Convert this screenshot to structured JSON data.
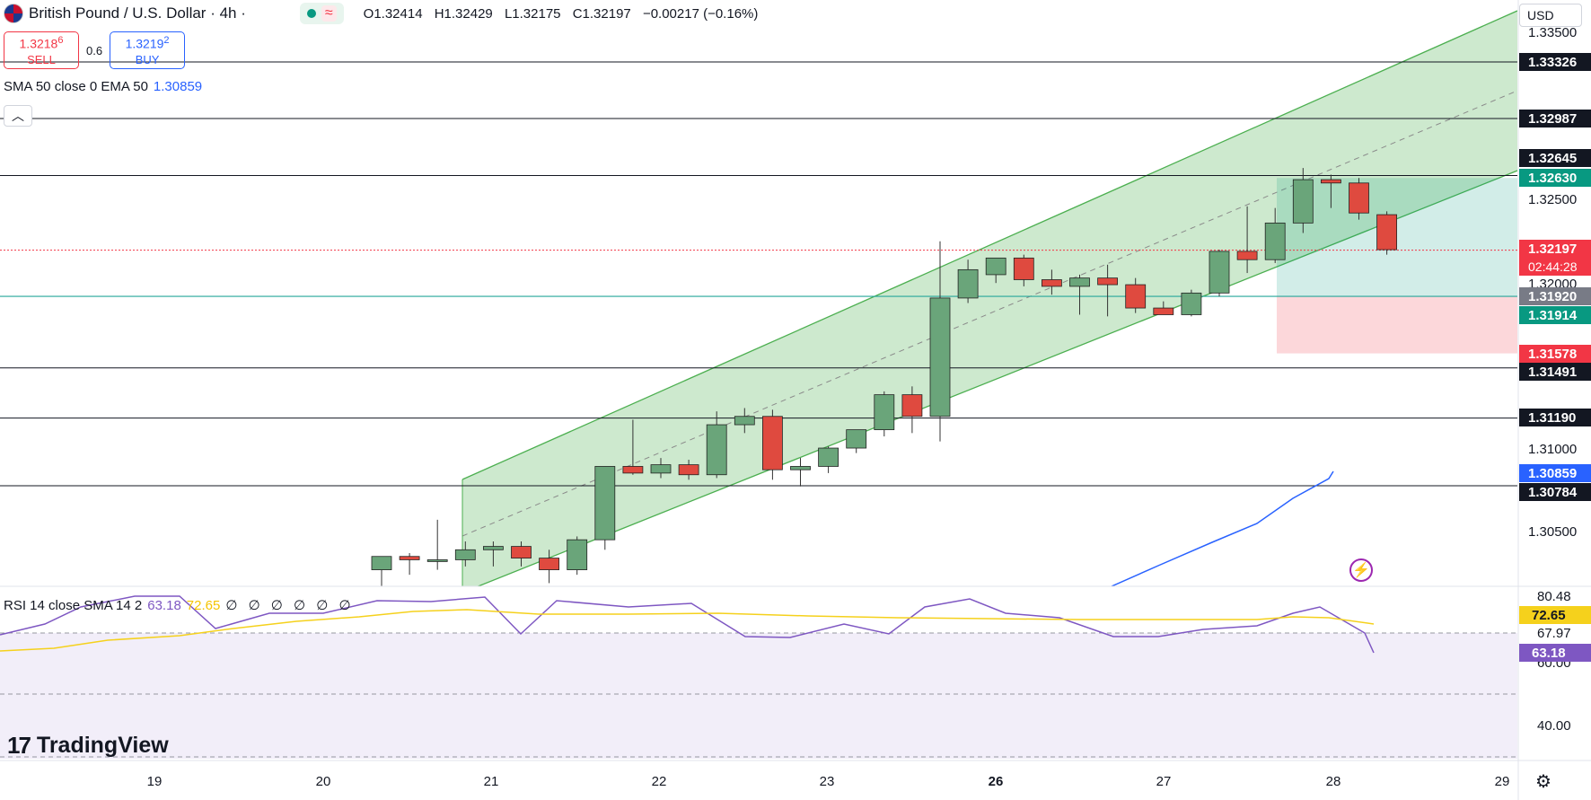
{
  "header": {
    "title": "British Pound / U.S. Dollar · 4h ·",
    "wave": "≈",
    "ohlc": {
      "o": "O1.32414",
      "h": "H1.32429",
      "l": "L1.32175",
      "c": "C1.32197",
      "chg": "−0.00217 (−0.16%)"
    }
  },
  "trade": {
    "sell_price": "1.3218",
    "sell_sup": "6",
    "sell_label": "SELL",
    "spread": "0.6",
    "buy_price": "1.3219",
    "buy_sup": "2",
    "buy_label": "BUY"
  },
  "indicator": {
    "label": "SMA 50 close 0 EMA 50",
    "value": "1.30859"
  },
  "collapse_icon": "chevron-up-icon",
  "rsi": {
    "label": "RSI 14 close SMA 14 2",
    "value": "63.18",
    "sma": "72.65",
    "tail": "∅ ∅ ∅ ∅ ∅ ∅"
  },
  "brand": {
    "name": "TradingView"
  },
  "currency": "USD",
  "icons": [
    "flag-icon",
    "bolt-icon",
    "gear-icon",
    "chevron-up-icon"
  ],
  "colors": {
    "up": "#6aa57a",
    "down": "#df4a3f",
    "channel": "#4caf50",
    "sma": "#2962ff",
    "rsi": "#7e57c2",
    "rsi_sma": "#f5d11c"
  },
  "chart_data": {
    "type": "candlestick",
    "symbol": "GBP/USD",
    "timeframe": "4h",
    "x_ticks": [
      "19",
      "20",
      "21",
      "22",
      "23",
      "26",
      "27",
      "28",
      "29"
    ],
    "ylim": [
      1.302,
      1.336
    ],
    "y_ticks": [
      "1.33500",
      "1.32500",
      "1.32000",
      "1.31000",
      "1.30500"
    ],
    "candles": [
      {
        "o": 1.3028,
        "h": 1.3035,
        "l": 1.3018,
        "c": 1.3036
      },
      {
        "o": 1.3036,
        "h": 1.3038,
        "l": 1.3025,
        "c": 1.3034
      },
      {
        "o": 1.3033,
        "h": 1.3058,
        "l": 1.3028,
        "c": 1.3034
      },
      {
        "o": 1.3034,
        "h": 1.3045,
        "l": 1.303,
        "c": 1.304
      },
      {
        "o": 1.304,
        "h": 1.3045,
        "l": 1.303,
        "c": 1.3042
      },
      {
        "o": 1.3042,
        "h": 1.3045,
        "l": 1.303,
        "c": 1.3035
      },
      {
        "o": 1.3035,
        "h": 1.304,
        "l": 1.302,
        "c": 1.3028
      },
      {
        "o": 1.3028,
        "h": 1.3048,
        "l": 1.3025,
        "c": 1.3046
      },
      {
        "o": 1.3046,
        "h": 1.309,
        "l": 1.304,
        "c": 1.309
      },
      {
        "o": 1.309,
        "h": 1.3118,
        "l": 1.3085,
        "c": 1.3086
      },
      {
        "o": 1.3086,
        "h": 1.3095,
        "l": 1.3083,
        "c": 1.3091
      },
      {
        "o": 1.3091,
        "h": 1.3094,
        "l": 1.3082,
        "c": 1.3085
      },
      {
        "o": 1.3085,
        "h": 1.3123,
        "l": 1.3083,
        "c": 1.3115
      },
      {
        "o": 1.3115,
        "h": 1.3125,
        "l": 1.311,
        "c": 1.312
      },
      {
        "o": 1.312,
        "h": 1.3124,
        "l": 1.3082,
        "c": 1.3088
      },
      {
        "o": 1.3088,
        "h": 1.3095,
        "l": 1.3078,
        "c": 1.309
      },
      {
        "o": 1.309,
        "h": 1.3102,
        "l": 1.3086,
        "c": 1.3101
      },
      {
        "o": 1.3101,
        "h": 1.311,
        "l": 1.3098,
        "c": 1.3112
      },
      {
        "o": 1.3112,
        "h": 1.3135,
        "l": 1.3108,
        "c": 1.3133
      },
      {
        "o": 1.3133,
        "h": 1.3138,
        "l": 1.311,
        "c": 1.312
      },
      {
        "o": 1.312,
        "h": 1.3225,
        "l": 1.3105,
        "c": 1.3191
      },
      {
        "o": 1.3191,
        "h": 1.3214,
        "l": 1.3188,
        "c": 1.3208
      },
      {
        "o": 1.3205,
        "h": 1.3213,
        "l": 1.32,
        "c": 1.3215
      },
      {
        "o": 1.3215,
        "h": 1.3217,
        "l": 1.3198,
        "c": 1.3202
      },
      {
        "o": 1.3202,
        "h": 1.3208,
        "l": 1.3193,
        "c": 1.3198
      },
      {
        "o": 1.3198,
        "h": 1.3205,
        "l": 1.3181,
        "c": 1.3203
      },
      {
        "o": 1.3203,
        "h": 1.3211,
        "l": 1.318,
        "c": 1.3199
      },
      {
        "o": 1.3199,
        "h": 1.3203,
        "l": 1.3182,
        "c": 1.3185
      },
      {
        "o": 1.3185,
        "h": 1.3189,
        "l": 1.3181,
        "c": 1.3181
      },
      {
        "o": 1.3181,
        "h": 1.3196,
        "l": 1.318,
        "c": 1.3194
      },
      {
        "o": 1.3194,
        "h": 1.322,
        "l": 1.3192,
        "c": 1.3219
      },
      {
        "o": 1.3219,
        "h": 1.3246,
        "l": 1.3206,
        "c": 1.3214
      },
      {
        "o": 1.3214,
        "h": 1.3245,
        "l": 1.3212,
        "c": 1.3236
      },
      {
        "o": 1.3236,
        "h": 1.3269,
        "l": 1.323,
        "c": 1.3262
      },
      {
        "o": 1.3262,
        "h": 1.3265,
        "l": 1.3245,
        "c": 1.326
      },
      {
        "o": 1.326,
        "h": 1.3263,
        "l": 1.3238,
        "c": 1.3242
      },
      {
        "o": 1.3241,
        "h": 1.3243,
        "l": 1.3217,
        "c": 1.322
      }
    ],
    "horizontal_levels": [
      "1.33326",
      "1.32987",
      "1.32645",
      "1.31491",
      "1.31190",
      "1.30784"
    ],
    "price_tags": [
      {
        "value": "1.33326",
        "kind": "level"
      },
      {
        "value": "1.32987",
        "kind": "level"
      },
      {
        "value": "1.32645",
        "kind": "level"
      },
      {
        "value": "1.32630",
        "kind": "target"
      },
      {
        "value": "1.32197",
        "kind": "last",
        "countdown": "02:44:28"
      },
      {
        "value": "1.31920",
        "kind": "entry"
      },
      {
        "value": "1.31914",
        "kind": "entry-green"
      },
      {
        "value": "1.31578",
        "kind": "stop"
      },
      {
        "value": "1.31491",
        "kind": "level"
      },
      {
        "value": "1.31190",
        "kind": "level"
      },
      {
        "value": "1.30859",
        "kind": "sma"
      },
      {
        "value": "1.30784",
        "kind": "level"
      }
    ],
    "rsi": {
      "ticks": [
        "80.48",
        "67.97",
        "60.00",
        "40.00"
      ],
      "ylim": [
        30,
        85
      ],
      "tags": {
        "rsi": "63.18",
        "sma": "72.65"
      }
    }
  }
}
